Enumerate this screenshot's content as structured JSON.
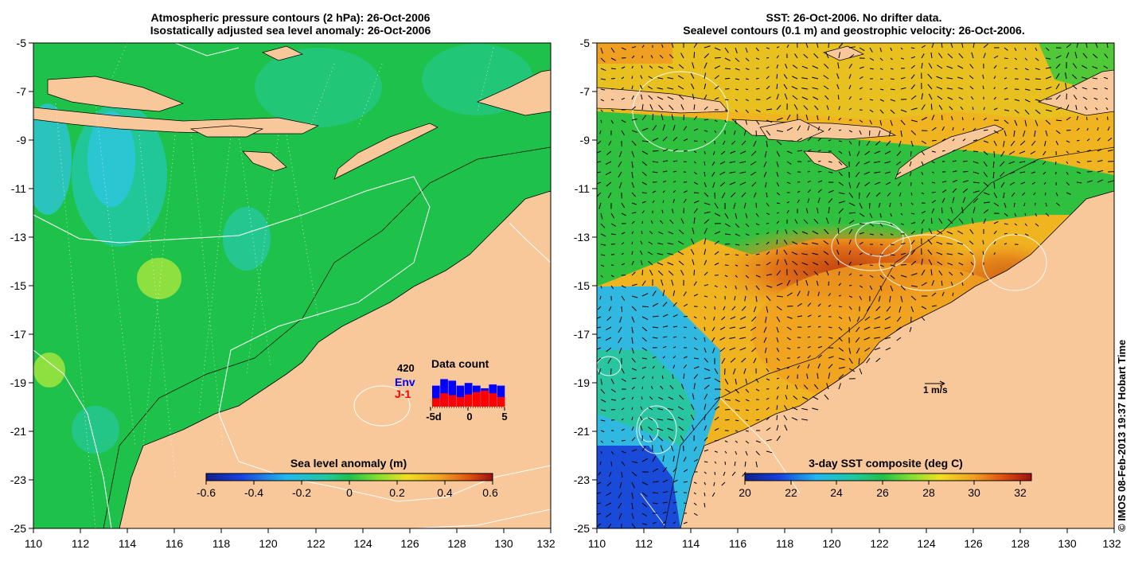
{
  "left_panel": {
    "title_line1": "Atmospheric pressure contours (2 hPa): 26-Oct-2006",
    "title_line2": "Isostatically adjusted sea level anomaly: 26-Oct-2006",
    "y_ticks": [
      "-5",
      "-7",
      "-9",
      "-11",
      "-13",
      "-15",
      "-17",
      "-19",
      "-21",
      "-23",
      "-25"
    ],
    "x_ticks": [
      "110",
      "112",
      "114",
      "116",
      "118",
      "120",
      "122",
      "124",
      "126",
      "128",
      "130",
      "132"
    ],
    "colorbar": {
      "label": "Sea level anomaly (m)",
      "ticks": [
        "-0.6",
        "-0.4",
        "-0.2",
        "0",
        "0.2",
        "0.4",
        "0.6"
      ],
      "range": [
        -0.6,
        0.6
      ]
    },
    "data_count": {
      "title": "Data count",
      "max_label": "420",
      "env_label": "Env",
      "j1_label": "J-1",
      "x_ticks": [
        "-5d",
        "0",
        "5"
      ],
      "env_color": "#0000ff",
      "j1_color": "#ff0000"
    }
  },
  "right_panel": {
    "title_line1": "SST: 26-Oct-2006. No drifter data.",
    "title_line2": "Sealevel contours (0.1 m) and geostrophic velocity: 26-Oct-2006.",
    "y_ticks": [
      "-5",
      "-7",
      "-9",
      "-11",
      "-13",
      "-15",
      "-17",
      "-19",
      "-21",
      "-23",
      "-25"
    ],
    "x_ticks": [
      "110",
      "112",
      "114",
      "116",
      "118",
      "120",
      "122",
      "124",
      "126",
      "128",
      "130",
      "132"
    ],
    "velocity_scale_label": "1 m/s",
    "colorbar": {
      "label": "3-day SST composite (deg C)",
      "ticks": [
        "20",
        "22",
        "24",
        "26",
        "28",
        "30",
        "32"
      ],
      "range": [
        20,
        32.5
      ]
    }
  },
  "credit": "© IMOS 08-Feb-2013 19:37 Hobart Time",
  "colors": {
    "land": "#f9c89a",
    "ocean_green": "#1ec24a",
    "sst_orange": "#f0a020",
    "sst_blue": "#1a4ad8"
  }
}
